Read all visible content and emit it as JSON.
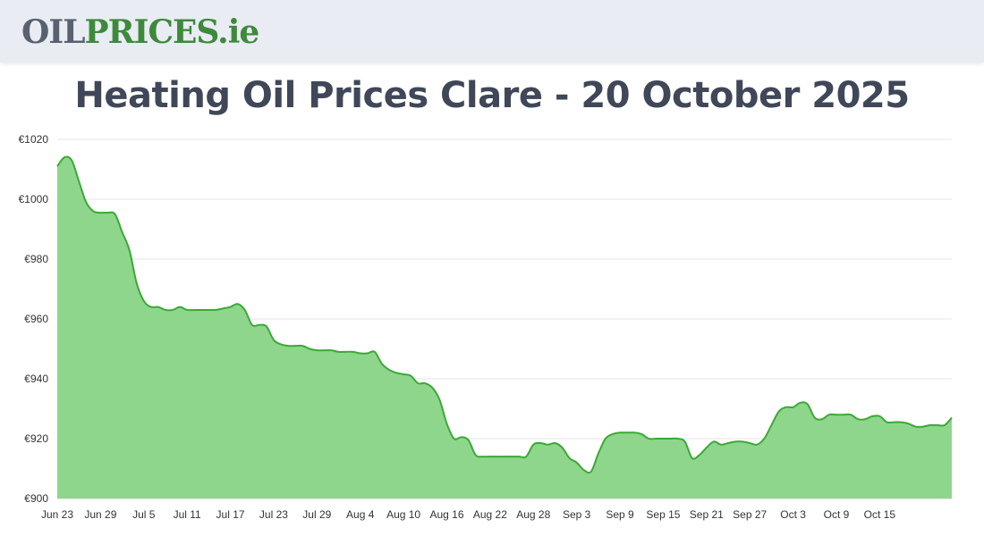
{
  "header": {
    "logo": {
      "part_a": "OIL",
      "part_b": "PRICES",
      "part_c": ".ie"
    }
  },
  "chart_data": {
    "type": "area",
    "title": "Heating Oil Prices Clare - 20 October 2025",
    "xlabel": "",
    "ylabel": "",
    "ylim": [
      900,
      1020
    ],
    "yticks": [
      "€900",
      "€920",
      "€940",
      "€960",
      "€980",
      "€1000",
      "€1020"
    ],
    "ytick_values": [
      900,
      920,
      940,
      960,
      980,
      1000,
      1020
    ],
    "xticks": [
      "Jun 23",
      "Jun 29",
      "Jul 5",
      "Jul 11",
      "Jul 17",
      "Jul 23",
      "Jul 29",
      "Aug 4",
      "Aug 10",
      "Aug 16",
      "Aug 22",
      "Aug 28",
      "Sep 3",
      "Sep 9",
      "Sep 15",
      "Sep 21",
      "Sep 27",
      "Oct 3",
      "Oct 9",
      "Oct 15"
    ],
    "x_start": "Jun 23",
    "x_end": "Oct 20",
    "grid": true,
    "colors": {
      "line": "#3aaa35",
      "fill": "#8fd68d",
      "grid": "#e6e6e6"
    },
    "series": [
      {
        "values": [
          1011,
          1014,
          1013,
          1006,
          999,
          996,
          995.5,
          995.5,
          995,
          989,
          983,
          972,
          966,
          964,
          964,
          963,
          963,
          964,
          963,
          963,
          963,
          963,
          963,
          963.5,
          964,
          965,
          963,
          958,
          958,
          957.5,
          953,
          951.5,
          951,
          951,
          951,
          950,
          949.5,
          949.5,
          949.5,
          949,
          949,
          949,
          948.5,
          948.5,
          949,
          945,
          943,
          942,
          941.5,
          941,
          938.5,
          938.5,
          937,
          933,
          925,
          920,
          920.5,
          919.5,
          914.5,
          914,
          914,
          914,
          914,
          914,
          914,
          914,
          918,
          918.5,
          918,
          918.5,
          917,
          913.5,
          912,
          909.5,
          909,
          915,
          920,
          921.5,
          922,
          922,
          922,
          921.5,
          920,
          920,
          920,
          920,
          920,
          919,
          913.5,
          914.5,
          917,
          919,
          918,
          918.5,
          919,
          919,
          918.5,
          918,
          920,
          924.5,
          929,
          930.5,
          930.5,
          932,
          931.5,
          927,
          926.5,
          928,
          928,
          928,
          928,
          926.5,
          926.5,
          927.5,
          927.5,
          925.5,
          925.5,
          925.5,
          925,
          924,
          924,
          924.5,
          924.5,
          924.5,
          927
        ]
      }
    ]
  }
}
